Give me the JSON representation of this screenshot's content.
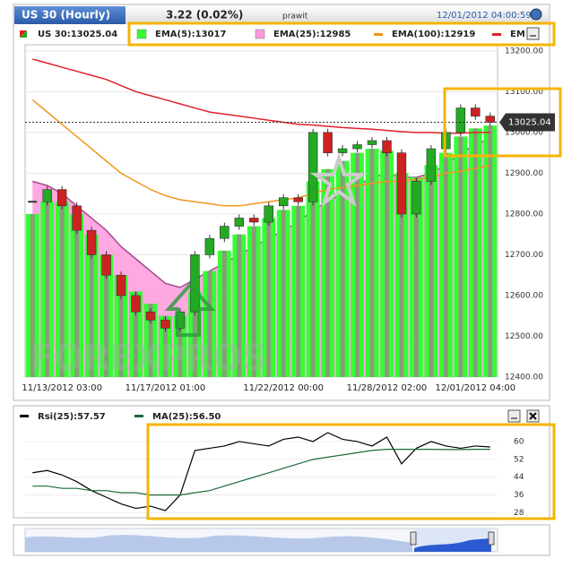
{
  "header": {
    "title": "US 30 (Hourly)",
    "change": "3.22 (0.02%)",
    "user": "prawit",
    "timestamp": "12/01/2012 04:00:59"
  },
  "chart_data": [
    {
      "type": "candlestick",
      "label": "US 30:13025.04",
      "watermark": "FOREXPROS",
      "last_value": 13025.04,
      "categories": [
        null,
        null,
        "11/13/2012 03:00",
        null,
        null,
        null,
        null,
        null,
        null,
        "11/17/2012 01:00",
        null,
        null,
        null,
        null,
        null,
        null,
        null,
        "11/22/2012 00:00",
        null,
        null,
        null,
        null,
        null,
        null,
        "11/28/2012 02:00",
        null,
        null,
        null,
        null,
        null,
        "12/01/2012 04:00",
        null
      ],
      "values": [
        12830,
        12860,
        12820,
        12760,
        12700,
        12650,
        12600,
        12560,
        12540,
        12520,
        12560,
        12700,
        12740,
        12770,
        12790,
        12780,
        12820,
        12840,
        12830,
        13000,
        12950,
        12960,
        12970,
        12980,
        12950,
        12800,
        12880,
        12960,
        13000,
        13060,
        13040,
        13025
      ],
      "up_color": "#22aa22",
      "down_color": "#cc2222",
      "series": [
        {
          "name": "EMA(5):13017",
          "color": "#33ff33",
          "kind": "bar",
          "values": [
            12800,
            12830,
            12830,
            12800,
            12750,
            12700,
            12650,
            12610,
            12580,
            12550,
            12550,
            12610,
            12660,
            12710,
            12750,
            12770,
            12790,
            12810,
            12820,
            12880,
            12910,
            12930,
            12950,
            12960,
            12955,
            12900,
            12890,
            12920,
            12950,
            12990,
            13010,
            13017
          ]
        },
        {
          "name": "EMA(25):12985",
          "color": "#ff99dd",
          "kind": "area",
          "values": [
            12880,
            12870,
            12850,
            12820,
            12790,
            12760,
            12720,
            12690,
            12660,
            12630,
            12620,
            12640,
            12660,
            12680,
            12700,
            12720,
            12740,
            12760,
            12780,
            12810,
            12830,
            12850,
            12870,
            12890,
            12900,
            12890,
            12890,
            12900,
            12920,
            12950,
            12970,
            12985
          ]
        },
        {
          "name": "EMA(100):12919",
          "color": "#f0961e",
          "kind": "line",
          "values": [
            13080,
            13050,
            13020,
            12990,
            12960,
            12930,
            12900,
            12880,
            12860,
            12845,
            12835,
            12830,
            12825,
            12820,
            12820,
            12825,
            12830,
            12835,
            12840,
            12850,
            12860,
            12865,
            12870,
            12875,
            12880,
            12880,
            12885,
            12890,
            12900,
            12905,
            12912,
            12919
          ]
        },
        {
          "name": "EM",
          "color": "#e0202a",
          "kind": "line",
          "values": [
            13180,
            13170,
            13160,
            13150,
            13140,
            13130,
            13115,
            13100,
            13090,
            13080,
            13070,
            13060,
            13050,
            13045,
            13040,
            13035,
            13030,
            13025,
            13020,
            13018,
            13015,
            13012,
            13010,
            13008,
            13005,
            13002,
            13000,
            13000,
            12998,
            12998,
            13000,
            13000
          ]
        }
      ],
      "ylim": [
        12400,
        13215
      ],
      "yticks": [
        {
          "value": 12400,
          "label": "12400.00"
        },
        {
          "value": 12500,
          "label": "12500.00"
        },
        {
          "value": 12600,
          "label": "12600.00"
        },
        {
          "value": 12700,
          "label": "12700.00"
        },
        {
          "value": 12800,
          "label": "12800.00"
        },
        {
          "value": 12900,
          "label": "12900.00"
        },
        {
          "value": 13000,
          "label": "13000.00"
        },
        {
          "value": 13100,
          "label": "13100.00"
        },
        {
          "value": 13200,
          "label": "13200.00"
        }
      ],
      "grid": true
    },
    {
      "type": "line",
      "series": [
        {
          "name": "Rsi(25):57.57",
          "color": "#000000",
          "values": [
            46,
            47,
            45,
            42,
            38,
            35,
            32,
            30,
            31,
            29,
            36,
            56,
            57,
            58,
            60,
            59,
            58,
            61,
            62,
            60,
            64,
            61,
            60,
            58,
            62,
            50,
            57,
            60,
            58,
            57,
            58,
            57.57
          ]
        },
        {
          "name": "MA(25):56.50",
          "color": "#1a6b3a",
          "values": [
            40,
            40,
            39,
            39,
            38,
            38,
            37,
            37,
            36,
            36,
            36,
            37,
            38,
            40,
            42,
            44,
            46,
            48,
            50,
            52,
            53,
            54,
            55,
            56,
            56.5,
            56.5,
            56.5,
            56.5,
            56.4,
            56.4,
            56.5,
            56.5
          ]
        }
      ],
      "ylim": [
        25,
        64
      ],
      "yticks": [
        28,
        36,
        44,
        52,
        60
      ],
      "grid": true
    }
  ]
}
